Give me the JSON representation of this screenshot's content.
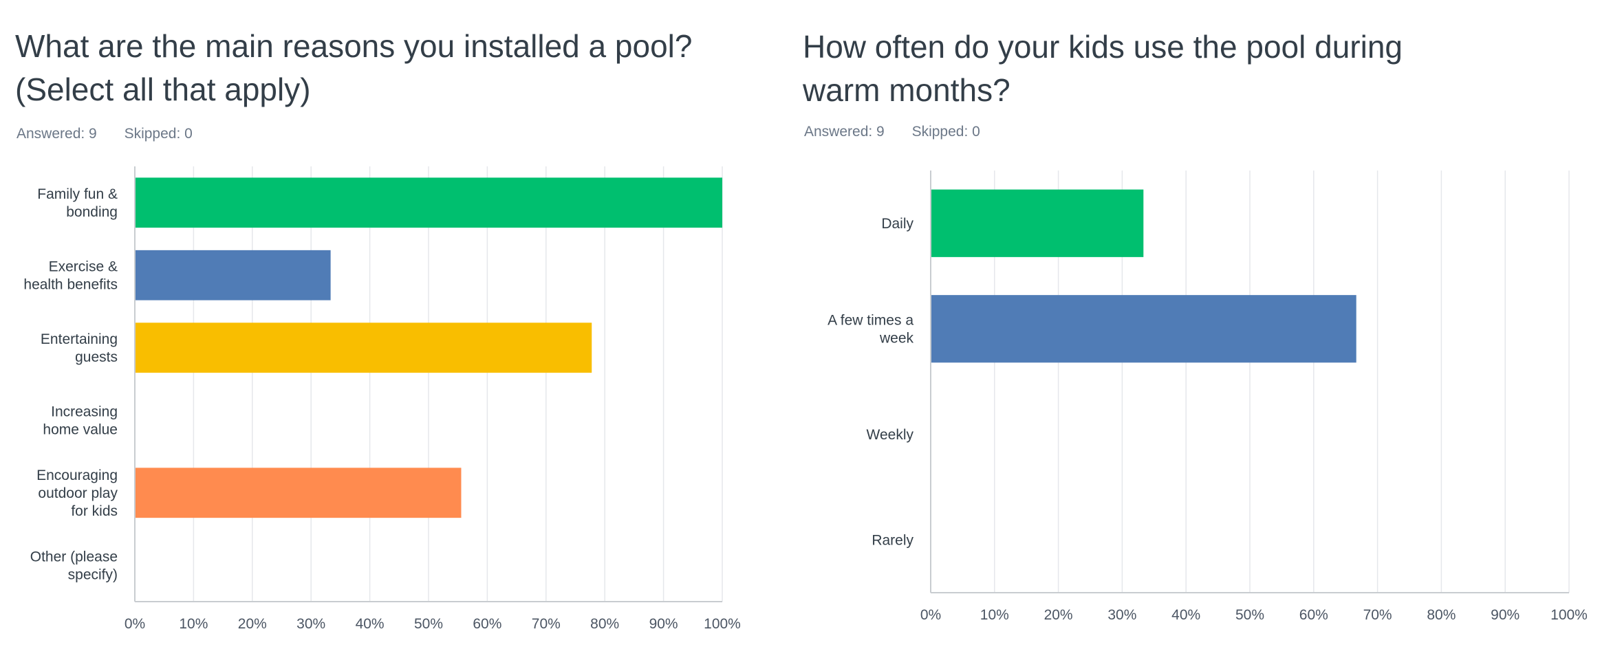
{
  "panels": [
    {
      "title_line1": "What are the main reasons you installed a pool?",
      "title_line2": "(Select all that apply)",
      "answered": "Answered: 9",
      "skipped": "Skipped: 0"
    },
    {
      "title_line1": "How often do your kids use the pool during",
      "title_line2": "warm months?",
      "answered": "Answered: 9",
      "skipped": "Skipped: 0"
    }
  ],
  "chart_data": [
    {
      "type": "bar",
      "orientation": "horizontal",
      "categories": [
        [
          "Family fun &",
          "bonding"
        ],
        [
          "Exercise &",
          "health benefits"
        ],
        [
          "Entertaining",
          "guests"
        ],
        [
          "Increasing",
          "home value"
        ],
        [
          "Encouraging",
          "outdoor play",
          "for kids"
        ],
        [
          "Other (please",
          "specify)"
        ]
      ],
      "values": [
        100,
        33.33,
        77.78,
        0,
        55.56,
        0
      ],
      "colors": [
        "#00bf6f",
        "#507cb6",
        "#f9be00",
        "#6bc8cd",
        "#ff8b4f",
        "#7f7fff"
      ],
      "xlim": [
        0,
        100
      ],
      "ticks": [
        "0%",
        "10%",
        "20%",
        "30%",
        "40%",
        "50%",
        "60%",
        "70%",
        "80%",
        "90%",
        "100%"
      ],
      "grid": true
    },
    {
      "type": "bar",
      "orientation": "horizontal",
      "categories": [
        [
          "Daily"
        ],
        [
          "A few times a",
          "week"
        ],
        [
          "Weekly"
        ],
        [
          "Rarely"
        ]
      ],
      "values": [
        33.33,
        66.67,
        0,
        0
      ],
      "colors": [
        "#00bf6f",
        "#507cb6",
        "#f9be00",
        "#6bc8cd"
      ],
      "xlim": [
        0,
        100
      ],
      "ticks": [
        "0%",
        "10%",
        "20%",
        "30%",
        "40%",
        "50%",
        "60%",
        "70%",
        "80%",
        "90%",
        "100%"
      ],
      "grid": true
    }
  ]
}
